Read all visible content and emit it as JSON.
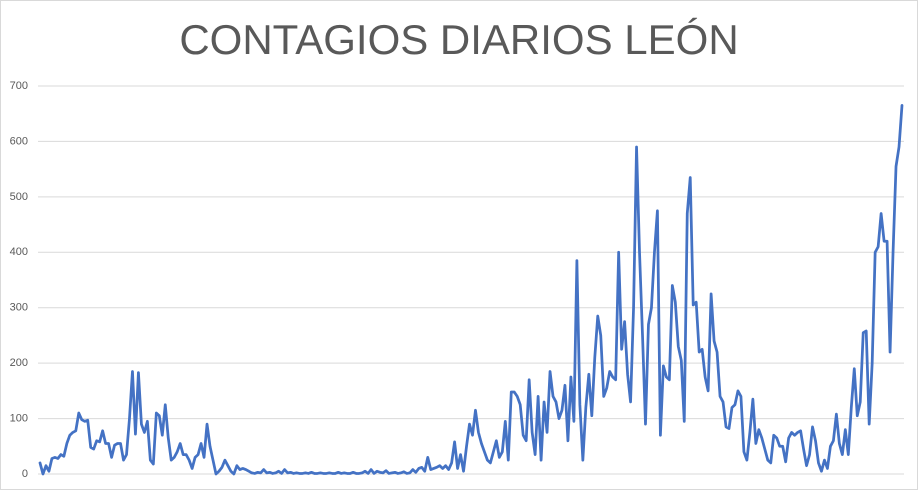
{
  "chart_data": {
    "type": "line",
    "title": "CONTAGIOS DIARIOS LEÓN",
    "series": [
      {
        "color": "#4472c4",
        "values": [
          20,
          0,
          15,
          5,
          28,
          30,
          28,
          35,
          32,
          55,
          70,
          75,
          78,
          110,
          98,
          95,
          97,
          48,
          45,
          60,
          58,
          78,
          55,
          55,
          30,
          52,
          55,
          55,
          25,
          35,
          100,
          185,
          72,
          183,
          90,
          75,
          95,
          25,
          18,
          110,
          105,
          70,
          125,
          65,
          25,
          30,
          40,
          55,
          35,
          35,
          25,
          10,
          30,
          35,
          55,
          30,
          90,
          50,
          25,
          0,
          5,
          12,
          25,
          15,
          5,
          0,
          15,
          8,
          10,
          8,
          5,
          2,
          1,
          3,
          2,
          8,
          2,
          3,
          1,
          2,
          5,
          1,
          8,
          2,
          3,
          1,
          2,
          1,
          1,
          2,
          1,
          3,
          1,
          1,
          2,
          1,
          1,
          2,
          1,
          1,
          3,
          1,
          2,
          1,
          1,
          3,
          1,
          1,
          2,
          5,
          1,
          8,
          1,
          5,
          3,
          2,
          6,
          1,
          2,
          3,
          1,
          2,
          4,
          1,
          2,
          8,
          3,
          10,
          12,
          5,
          30,
          8,
          10,
          12,
          15,
          10,
          15,
          8,
          20,
          58,
          10,
          35,
          5,
          50,
          90,
          70,
          115,
          75,
          55,
          40,
          25,
          20,
          40,
          60,
          30,
          40,
          95,
          25,
          148,
          148,
          140,
          125,
          70,
          60,
          170,
          75,
          35,
          140,
          25,
          130,
          75,
          185,
          140,
          130,
          100,
          115,
          160,
          60,
          175,
          95,
          385,
          125,
          25,
          120,
          180,
          105,
          210,
          285,
          250,
          140,
          155,
          185,
          175,
          170,
          400,
          225,
          275,
          180,
          130,
          300,
          590,
          400,
          250,
          90,
          270,
          300,
          400,
          475,
          70,
          195,
          175,
          170,
          340,
          310,
          230,
          205,
          95,
          470,
          535,
          305,
          310,
          220,
          225,
          175,
          150,
          325,
          240,
          220,
          140,
          130,
          85,
          82,
          120,
          125,
          150,
          140,
          40,
          25,
          75,
          135,
          55,
          80,
          65,
          45,
          25,
          20,
          70,
          65,
          50,
          50,
          22,
          65,
          75,
          70,
          75,
          78,
          45,
          15,
          35,
          85,
          60,
          20,
          5,
          25,
          10,
          50,
          60,
          108,
          55,
          35,
          80,
          35,
          120,
          190,
          105,
          130,
          255,
          258,
          90,
          200,
          400,
          410,
          470,
          420,
          420,
          220,
          400,
          555,
          590,
          665
        ]
      }
    ],
    "ylim": [
      0,
      700
    ],
    "yticks": [
      0,
      100,
      200,
      300,
      400,
      500,
      600,
      700
    ],
    "grid": true
  }
}
